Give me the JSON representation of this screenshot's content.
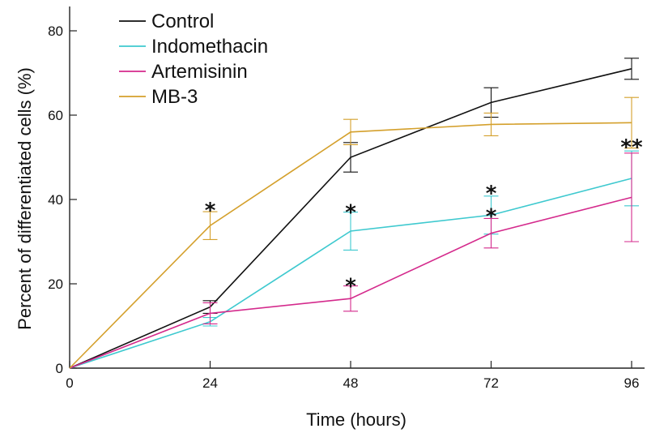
{
  "chart_data": {
    "type": "line",
    "title": "",
    "xlabel": "Time (hours)",
    "ylabel": "Percent of differentiated cells (%)",
    "x": [
      0,
      24,
      48,
      72,
      96
    ],
    "x_ticks": [
      "0",
      "24",
      "48",
      "72",
      "96"
    ],
    "y_ticks": [
      "0",
      "20",
      "40",
      "60",
      "80"
    ],
    "xlim": [
      0,
      96
    ],
    "ylim": [
      0,
      80
    ],
    "grid": false,
    "legend_position": "top-left",
    "series": [
      {
        "name": "Control",
        "color": "#111111",
        "values": [
          0,
          14.5,
          50,
          63,
          71
        ],
        "error": [
          0,
          1.5,
          3.5,
          3.5,
          2.5
        ]
      },
      {
        "name": "Indomethacin",
        "color": "#3ec9cf",
        "values": [
          0,
          11,
          32.5,
          36.3,
          45
        ],
        "error": [
          0,
          1,
          4.5,
          4.5,
          6.5
        ]
      },
      {
        "name": "Artemisinin",
        "color": "#d42a8c",
        "values": [
          0,
          13,
          16.5,
          32,
          40.5
        ],
        "error": [
          0,
          2.5,
          3,
          3.5,
          10.5
        ]
      },
      {
        "name": "MB-3",
        "color": "#d4a02c",
        "values": [
          0,
          33.8,
          56,
          57.8,
          58.2
        ],
        "error": [
          0,
          3.3,
          3,
          2.7,
          6
        ]
      }
    ],
    "annotations": [
      {
        "text": "*",
        "x": 24,
        "y": 38.5
      },
      {
        "text": "*",
        "x": 48,
        "y": 38
      },
      {
        "text": "*",
        "x": 48,
        "y": 20.5
      },
      {
        "text": "*",
        "x": 72,
        "y": 42.5
      },
      {
        "text": "*",
        "x": 72,
        "y": 37
      },
      {
        "text": "**",
        "x": 96,
        "y": 53.5
      }
    ]
  }
}
